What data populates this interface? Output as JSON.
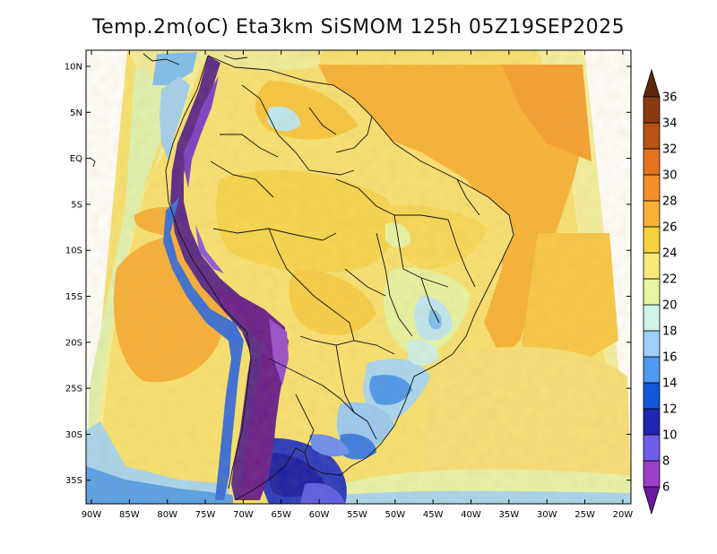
{
  "title": "Temp.2m(oC) Eta3km SiSMOM 125h 05Z19SEP2025",
  "axes": {
    "lat_labels": [
      "10N",
      "5N",
      "EQ",
      "5S",
      "10S",
      "15S",
      "20S",
      "25S",
      "30S",
      "35S"
    ],
    "lon_labels": [
      "90W",
      "85W",
      "80W",
      "75W",
      "70W",
      "65W",
      "60W",
      "55W",
      "50W",
      "45W",
      "40W",
      "35W",
      "30W",
      "25W",
      "20W"
    ]
  },
  "colorbar": {
    "levels": [
      "6",
      "8",
      "10",
      "12",
      "14",
      "16",
      "18",
      "20",
      "22",
      "24",
      "26",
      "28",
      "30",
      "32",
      "34",
      "36"
    ],
    "colors": [
      "#6a1aa0",
      "#9b3fc9",
      "#6f5ee8",
      "#2226b0",
      "#1158d8",
      "#4d9af0",
      "#9ccffb",
      "#cdf4e6",
      "#e8f5a0",
      "#f8e97a",
      "#f7d23c",
      "#f8b236",
      "#f48f2a",
      "#e4731e",
      "#b85314",
      "#8a3a10",
      "#5e260c"
    ]
  }
}
